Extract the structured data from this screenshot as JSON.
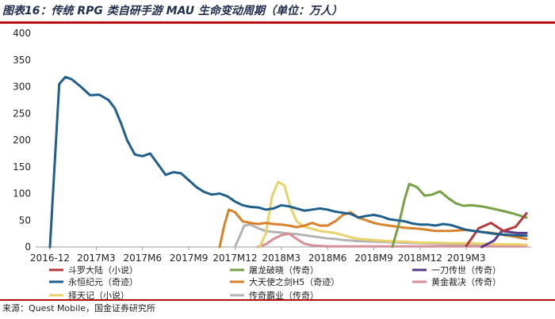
{
  "figure": {
    "title": "图表16：传统 RPG 类自研手游 MAU 生命变动周期（单位：万人）",
    "source": "来源：Quest Mobile，国金证券研究所"
  },
  "chart_data": {
    "type": "line",
    "title": "图表16：传统 RPG 类自研手游 MAU 生命变动周期（单位：万人）",
    "xlabel": "",
    "ylabel": "",
    "ylim": [
      0,
      400
    ],
    "yticks": [
      0,
      50,
      100,
      150,
      200,
      250,
      300,
      350,
      400
    ],
    "xlim": [
      0,
      31
    ],
    "xticks": [
      "2016-12",
      "2017M3",
      "2017M6",
      "2017M9",
      "2017M12",
      "2018M3",
      "2018M6",
      "2018M9",
      "2018M12",
      "2019M3"
    ],
    "grid": false,
    "legend_position": "bottom",
    "series": [
      {
        "name": "斗罗大陆（小说）",
        "color": "#b5393a",
        "x": [
          27.0,
          27.8,
          28.6,
          29.4,
          30.2,
          30.9
        ],
        "y": [
          2,
          35,
          45,
          30,
          38,
          63
        ]
      },
      {
        "name": "屠龙破晓（传奇）",
        "color": "#77a043",
        "x": [
          22.2,
          22.6,
          23.0,
          23.3,
          23.8,
          24.3,
          24.8,
          25.3,
          25.8,
          26.3,
          26.8,
          27.3,
          28.0,
          29.0,
          30.0,
          30.9
        ],
        "y": [
          0,
          40,
          90,
          118,
          112,
          96,
          98,
          104,
          92,
          82,
          77,
          78,
          76,
          70,
          63,
          55
        ]
      },
      {
        "name": "一刀传世（传奇）",
        "color": "#5b3a8c",
        "x": [
          28.0,
          28.8,
          29.3,
          29.8,
          30.3,
          30.9
        ],
        "y": [
          0,
          12,
          30,
          28,
          26,
          26
        ]
      },
      {
        "name": "永恒纪元（奇迹）",
        "color": "#1f5f8b",
        "x": [
          0,
          0.6,
          1.0,
          1.4,
          2.0,
          2.6,
          3.2,
          3.8,
          4.2,
          4.6,
          5.0,
          5.5,
          6.0,
          6.5,
          7.0,
          7.5,
          8.0,
          8.5,
          9.0,
          9.5,
          10.0,
          10.5,
          11.0,
          11.5,
          12.0,
          12.5,
          13.0,
          13.5,
          14.0,
          14.5,
          15.0,
          15.5,
          16.0,
          16.5,
          17.0,
          17.5,
          18.0,
          18.5,
          19.0,
          19.5,
          20.0,
          20.5,
          21.0,
          21.5,
          22.0,
          22.5,
          23.0,
          23.5,
          24.0,
          24.5,
          25.0,
          25.5,
          26.0,
          27.0,
          28.0,
          29.0,
          30.0,
          30.9
        ],
        "y": [
          0,
          305,
          318,
          314,
          300,
          284,
          285,
          275,
          260,
          232,
          200,
          173,
          170,
          175,
          155,
          135,
          140,
          138,
          125,
          112,
          103,
          98,
          100,
          95,
          85,
          78,
          75,
          74,
          70,
          72,
          78,
          76,
          72,
          68,
          70,
          72,
          70,
          66,
          64,
          62,
          55,
          58,
          60,
          57,
          52,
          50,
          48,
          44,
          42,
          42,
          40,
          43,
          41,
          32,
          28,
          24,
          22,
          21
        ]
      },
      {
        "name": "大天使之剑H5（奇迹）",
        "color": "#d9822b",
        "x": [
          11.0,
          11.3,
          11.6,
          12.0,
          12.5,
          13.0,
          13.5,
          14.0,
          14.5,
          15.0,
          15.5,
          16.0,
          16.5,
          17.0,
          17.5,
          18.0,
          18.5,
          19.0,
          19.5,
          20.0,
          20.5,
          21.0,
          21.5,
          22.0,
          22.5,
          23.0,
          23.5,
          24.0,
          24.5,
          25.0,
          25.5,
          26.0,
          26.5,
          27.0,
          27.5,
          28.0,
          28.5,
          29.0,
          29.5,
          30.0,
          30.9
        ],
        "y": [
          0,
          40,
          70,
          65,
          48,
          45,
          43,
          45,
          43,
          42,
          40,
          37,
          40,
          45,
          40,
          40,
          48,
          60,
          65,
          55,
          50,
          45,
          42,
          40,
          38,
          36,
          35,
          34,
          32,
          30,
          30,
          30,
          31,
          32,
          30,
          28,
          27,
          25,
          22,
          20,
          15
        ]
      },
      {
        "name": "黄金裁决（传奇）",
        "color": "#d98f9a",
        "x": [
          13.5,
          14.0,
          14.5,
          15.0,
          15.5,
          16.0,
          16.5,
          17.0,
          17.5,
          18.0,
          18.5,
          19.0,
          20.0,
          21.0,
          22.0,
          23.0,
          24.0,
          25.0,
          26.0,
          27.0,
          28.0,
          29.0,
          30.0,
          30.9
        ],
        "y": [
          0,
          5,
          15,
          22,
          25,
          15,
          6,
          3,
          2,
          1,
          1,
          1,
          1,
          1,
          1,
          1,
          1,
          1,
          1,
          1,
          1,
          1,
          1,
          1
        ]
      },
      {
        "name": "择天记（小说）",
        "color": "#e9d26a",
        "x": [
          13.6,
          14.0,
          14.4,
          14.8,
          15.2,
          15.6,
          16.0,
          16.5,
          17.0,
          17.5,
          18.0,
          18.5,
          19.0,
          19.5,
          20.0,
          20.5,
          21.0,
          21.5,
          22.0,
          22.5,
          23.0,
          23.5,
          24.0,
          25.0,
          26.0,
          27.0,
          28.0,
          29.0,
          30.0,
          30.9
        ],
        "y": [
          0,
          25,
          95,
          122,
          115,
          75,
          48,
          38,
          34,
          30,
          28,
          26,
          22,
          18,
          15,
          14,
          13,
          12,
          11,
          10,
          10,
          9,
          8,
          8,
          7,
          7,
          6,
          5,
          5,
          4
        ]
      },
      {
        "name": "传奇霸业（传奇）",
        "color": "#b3b3b3",
        "x": [
          12.0,
          12.3,
          12.6,
          13.0,
          13.5,
          14.0,
          14.5,
          15.0,
          15.5,
          16.0,
          16.5,
          17.0,
          17.5,
          18.0,
          18.5,
          19.0,
          19.5,
          20.0,
          21.0,
          22.0,
          23.0,
          24.0,
          25.0,
          26.0,
          27.0,
          28.0,
          29.0,
          30.0,
          30.9
        ],
        "y": [
          0,
          20,
          40,
          42,
          35,
          30,
          28,
          27,
          25,
          24,
          22,
          20,
          18,
          16,
          15,
          13,
          12,
          11,
          10,
          9,
          8,
          7,
          6,
          5,
          4,
          4,
          3,
          3,
          3
        ]
      }
    ]
  }
}
